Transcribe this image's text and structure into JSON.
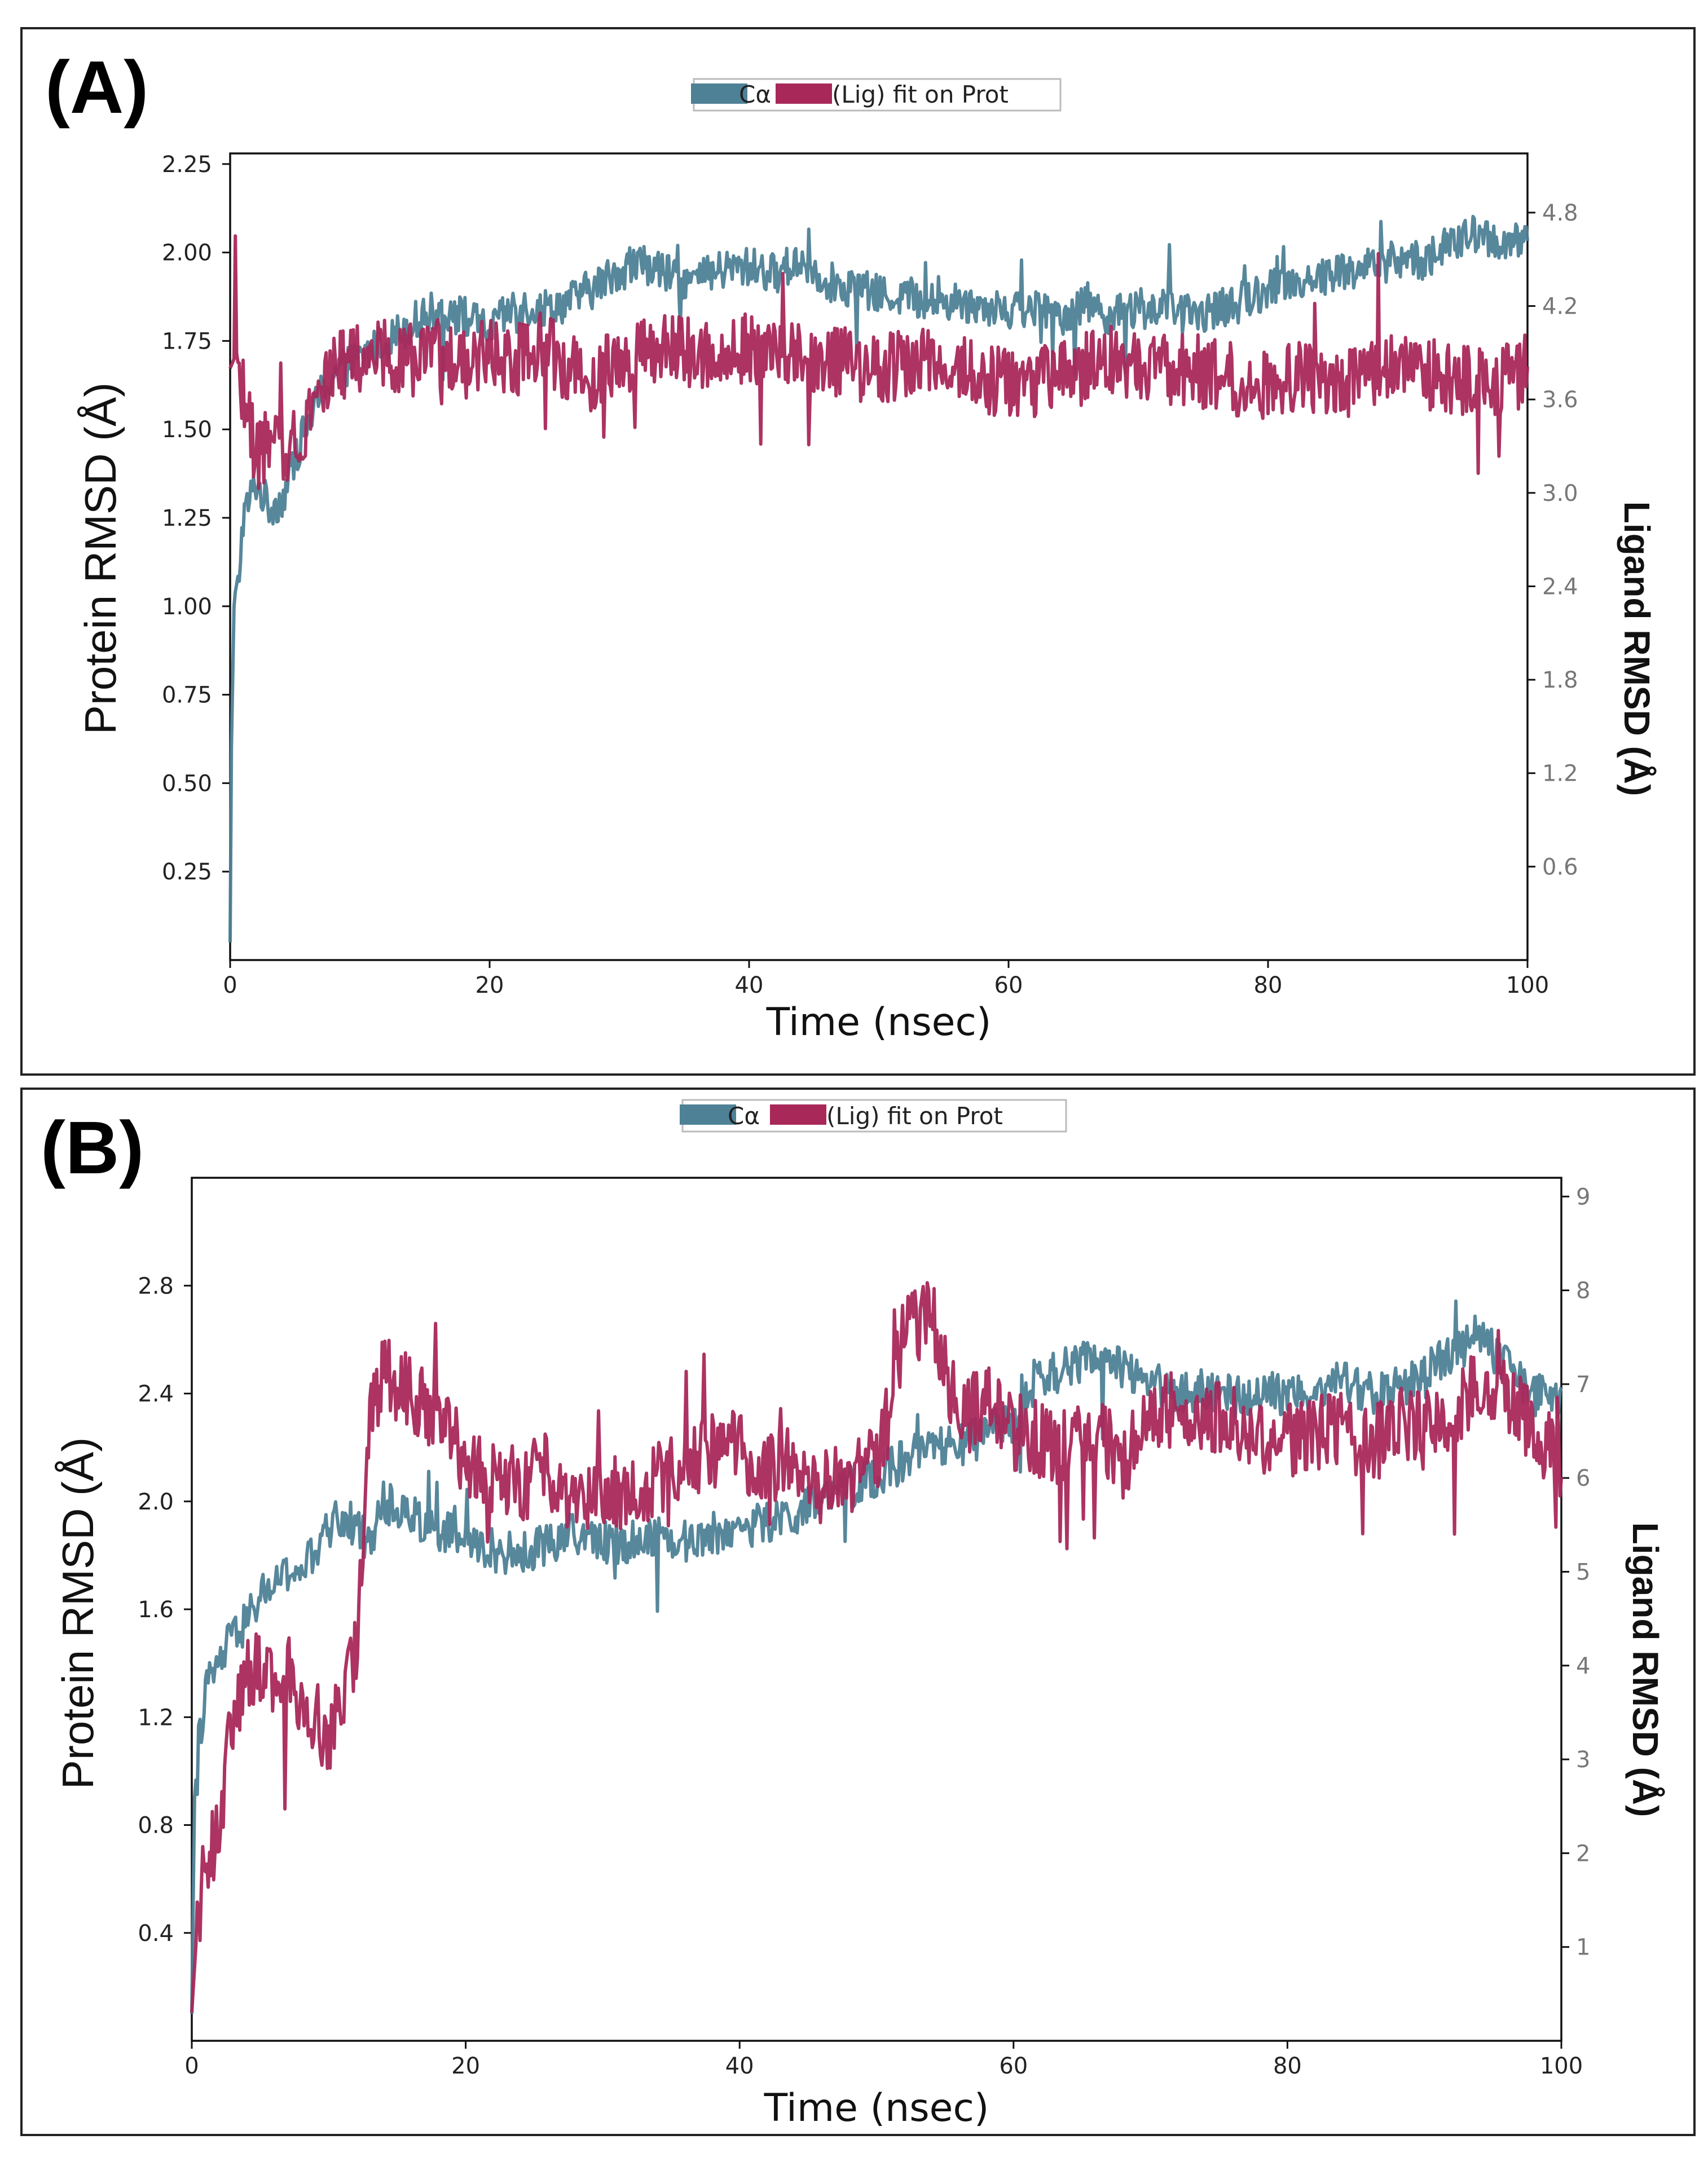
{
  "colors": {
    "protein": "#4e8196",
    "ligand": "#a8285a",
    "highlight_tick": "#a8285a"
  },
  "chart_data": [
    {
      "type": "line",
      "panel_label": "(A)",
      "legend": [
        "Cα",
        "(Lig) fit on Prot"
      ],
      "legend_text": "Cα (Lig) fit on Prot",
      "xlabel": "Time (nsec)",
      "ylabel": "Protein RMSD (Å)",
      "y2label": "Ligand RMSD (Å)",
      "xlim": [
        0,
        100
      ],
      "ylim": [
        0,
        2.28
      ],
      "y2lim": [
        0,
        5.18
      ],
      "xticks": [
        0,
        20,
        40,
        60,
        80,
        100
      ],
      "yticks": [
        0.25,
        0.5,
        0.75,
        1.0,
        1.25,
        1.5,
        1.75,
        2.0,
        2.25
      ],
      "ytick_labels": [
        "0.25",
        "0.50",
        "0.75",
        "1.00",
        "1.25",
        "1.50",
        "1.75",
        "2.00",
        "2.25"
      ],
      "y2ticks": [
        0.6,
        1.2,
        1.8,
        2.4,
        3.0,
        3.6,
        4.2,
        4.8
      ],
      "y2tick_labels": [
        "0.6",
        "1.2",
        "1.8",
        "2.4",
        "3.0",
        "3.6",
        "4.2",
        "4.8"
      ],
      "series": [
        {
          "name": "Cα",
          "axis": "left",
          "color": "#4e8196",
          "x": [
            0,
            0.1,
            0.3,
            0.6,
            1,
            2,
            3,
            4,
            5,
            6,
            7,
            8,
            10,
            12,
            14,
            16,
            18,
            20,
            22,
            24,
            26,
            28,
            30,
            32,
            34,
            36,
            38,
            40,
            42,
            44,
            46,
            48,
            50,
            52,
            54,
            56,
            58,
            60,
            62,
            64,
            66,
            68,
            70,
            72,
            74,
            76,
            78,
            80,
            82,
            84,
            86,
            88,
            90,
            92,
            94,
            96,
            98,
            100
          ],
          "values": [
            0.05,
            0.6,
            1.0,
            1.05,
            1.25,
            1.35,
            1.28,
            1.3,
            1.42,
            1.52,
            1.6,
            1.66,
            1.7,
            1.75,
            1.8,
            1.84,
            1.82,
            1.78,
            1.85,
            1.84,
            1.86,
            1.9,
            1.95,
            1.97,
            1.93,
            1.92,
            1.95,
            1.96,
            1.94,
            1.98,
            1.92,
            1.9,
            1.88,
            1.88,
            1.86,
            1.86,
            1.85,
            1.84,
            1.84,
            1.82,
            1.86,
            1.82,
            1.84,
            1.85,
            1.82,
            1.84,
            1.86,
            1.9,
            1.92,
            1.93,
            1.95,
            1.96,
            1.98,
            1.98,
            2.02,
            2.05,
            2.03,
            2.02
          ]
        },
        {
          "name": "(Lig) fit on Prot",
          "axis": "right",
          "color": "#a8285a",
          "x": [
            0,
            0.5,
            1.3,
            2,
            3,
            4,
            5,
            6,
            7,
            8,
            10,
            12,
            14,
            16,
            18,
            20,
            22,
            24,
            26,
            28,
            30,
            32,
            34,
            36,
            38,
            40,
            42,
            44,
            46,
            48,
            50,
            52,
            54,
            56,
            58,
            60,
            62,
            64,
            66,
            68,
            70,
            72,
            74,
            76,
            78,
            80,
            82,
            84,
            86,
            88,
            90,
            92,
            94,
            96,
            98,
            100
          ],
          "values": [
            3.8,
            3.9,
            3.5,
            3.25,
            3.3,
            3.25,
            3.35,
            3.5,
            3.7,
            3.8,
            3.85,
            3.9,
            3.85,
            3.88,
            3.82,
            3.9,
            3.85,
            3.95,
            3.8,
            3.75,
            3.85,
            3.9,
            3.92,
            3.88,
            3.9,
            3.95,
            3.88,
            3.85,
            3.85,
            3.82,
            3.8,
            3.82,
            3.85,
            3.8,
            3.75,
            3.7,
            3.72,
            3.75,
            3.8,
            3.85,
            3.8,
            3.78,
            3.8,
            3.75,
            3.72,
            3.7,
            3.75,
            3.72,
            3.7,
            3.75,
            3.85,
            3.78,
            3.72,
            3.75,
            3.72,
            3.75
          ]
        }
      ]
    },
    {
      "type": "line",
      "panel_label": "(B)",
      "legend": [
        "Cα",
        "(Lig) fit on Prot"
      ],
      "legend_text": "Cα (Lig) fit on Prot",
      "xlabel": "Time (nsec)",
      "ylabel": "Protein RMSD (Å)",
      "y2label": "Ligand RMSD (Å)",
      "xlim": [
        0,
        100
      ],
      "ylim": [
        0,
        3.2
      ],
      "y2lim": [
        0,
        9.2
      ],
      "xticks": [
        0,
        20,
        40,
        60,
        80,
        100
      ],
      "yticks": [
        0.4,
        0.8,
        1.2,
        1.6,
        2.0,
        2.4,
        2.8
      ],
      "ytick_labels": [
        "0.4",
        "0.8",
        "1.2",
        "1.6",
        "2.0",
        "2.4",
        "2.8"
      ],
      "y2ticks": [
        1,
        2,
        3,
        4,
        5,
        6,
        7,
        8,
        9
      ],
      "y2tick_labels": [
        "1",
        "2",
        "3",
        "4",
        "5",
        "6",
        "7",
        "8",
        "9"
      ],
      "series": [
        {
          "name": "Cα",
          "axis": "left",
          "color": "#4e8196",
          "x": [
            0,
            0.2,
            0.5,
            1,
            2,
            3,
            4,
            5,
            6,
            7,
            8,
            9,
            10,
            11,
            12,
            13,
            14,
            16,
            18,
            20,
            22,
            24,
            26,
            28,
            30,
            32,
            34,
            36,
            38,
            40,
            42,
            44,
            46,
            48,
            50,
            52,
            54,
            56,
            58,
            60,
            62,
            64,
            66,
            68,
            70,
            72,
            74,
            76,
            78,
            80,
            82,
            84,
            86,
            88,
            90,
            92,
            94,
            96,
            98,
            100
          ],
          "values": [
            0.1,
            0.9,
            1.1,
            1.3,
            1.4,
            1.5,
            1.55,
            1.65,
            1.7,
            1.72,
            1.75,
            1.8,
            1.9,
            1.95,
            1.9,
            1.85,
            2.0,
            1.95,
            1.9,
            1.85,
            1.82,
            1.8,
            1.85,
            1.88,
            1.85,
            1.85,
            1.88,
            1.85,
            1.88,
            1.9,
            1.92,
            1.95,
            2.0,
            2.05,
            2.1,
            2.15,
            2.2,
            2.2,
            2.25,
            2.3,
            2.45,
            2.5,
            2.52,
            2.5,
            2.45,
            2.4,
            2.42,
            2.38,
            2.4,
            2.4,
            2.42,
            2.45,
            2.4,
            2.42,
            2.48,
            2.55,
            2.62,
            2.5,
            2.4,
            2.35
          ]
        },
        {
          "name": "(Lig) fit on Prot",
          "axis": "right",
          "color": "#a8285a",
          "x": [
            0,
            0.5,
            1,
            2,
            3,
            4,
            5,
            6,
            7,
            8,
            9,
            10,
            11,
            12,
            13,
            14,
            16,
            18,
            20,
            22,
            24,
            26,
            28,
            30,
            32,
            34,
            36,
            38,
            40,
            42,
            44,
            46,
            48,
            50,
            52,
            54,
            56,
            58,
            60,
            62,
            64,
            66,
            68,
            70,
            72,
            74,
            76,
            78,
            80,
            82,
            84,
            86,
            88,
            90,
            92,
            94,
            96,
            98,
            100
          ],
          "values": [
            0.3,
            1.5,
            2.0,
            2.2,
            3.5,
            3.9,
            4.0,
            3.9,
            3.8,
            3.7,
            3.5,
            3.2,
            3.6,
            4.2,
            6.6,
            7.1,
            6.9,
            6.6,
            6.2,
            6.0,
            5.9,
            6.1,
            5.8,
            5.9,
            5.8,
            6.0,
            6.2,
            6.3,
            6.3,
            6.1,
            6.2,
            5.9,
            6.0,
            6.2,
            7.5,
            7.8,
            6.6,
            6.8,
            6.5,
            6.4,
            6.3,
            6.5,
            6.2,
            6.6,
            6.8,
            6.7,
            6.6,
            6.4,
            6.4,
            6.5,
            6.5,
            6.3,
            6.6,
            6.5,
            6.6,
            7.0,
            6.9,
            6.5,
            6.2
          ]
        }
      ]
    }
  ]
}
